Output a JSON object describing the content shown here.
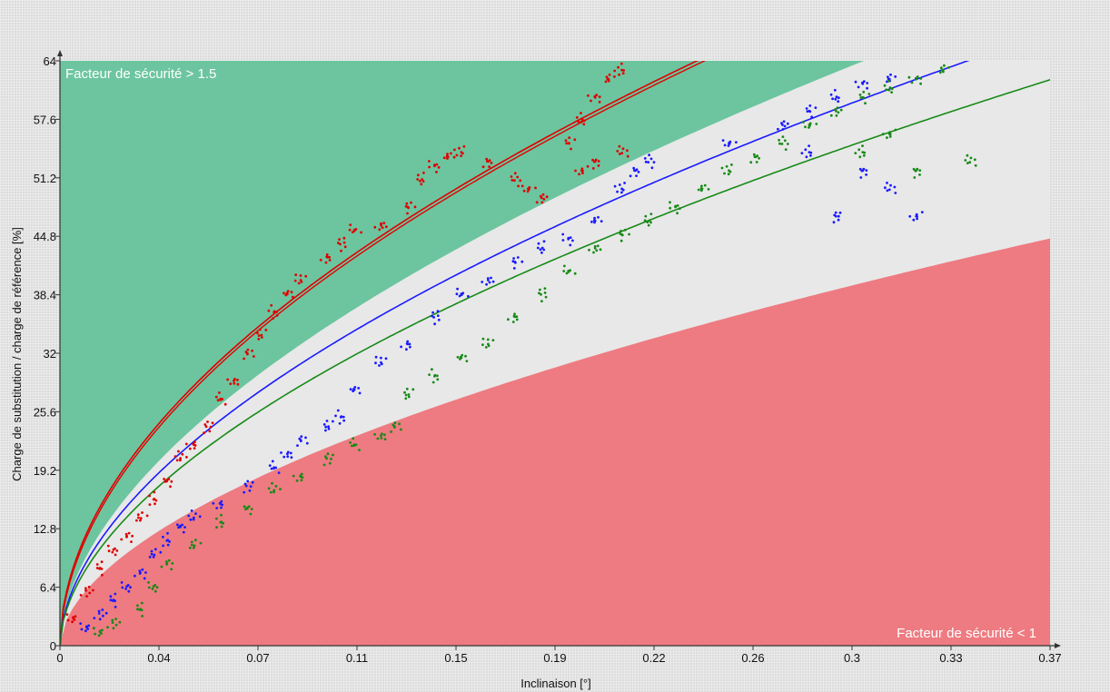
{
  "chart_data": {
    "type": "scatter",
    "title": "",
    "xlabel": "Inclinaison [°]",
    "ylabel": "Charge de substitution / charge de référence [%]",
    "xlim": [
      0,
      0.37
    ],
    "ylim": [
      0,
      64
    ],
    "x_ticks": [
      "0",
      "0.04",
      "0.07",
      "0.11",
      "0.15",
      "0.19",
      "0.22",
      "0.26",
      "0.3",
      "0.33",
      "0.37"
    ],
    "y_ticks": [
      "0",
      "6.4",
      "12.8",
      "19.2",
      "25.6",
      "32",
      "38.4",
      "44.8",
      "51.2",
      "57.6",
      "64"
    ],
    "grid": false,
    "zones": [
      {
        "name": "Facteur de sécurité > 1.5",
        "color": "#6cc59f",
        "boundary": {
          "coef": 124,
          "exp": 0.55
        }
      },
      {
        "name": "Facteur de sécurité < 1",
        "color": "#ee7b81",
        "boundary": {
          "coef": 77,
          "exp": 0.55
        }
      }
    ],
    "middle_zone_color": "#e8e8e8",
    "series": [
      {
        "color": "#e00000",
        "fit": {
          "coef": 135,
          "exp": 0.52
        },
        "fit_double": true,
        "points": [
          [
            0.005,
            3
          ],
          [
            0.01,
            6
          ],
          [
            0.015,
            8.5
          ],
          [
            0.02,
            10.5
          ],
          [
            0.025,
            12
          ],
          [
            0.03,
            14
          ],
          [
            0.035,
            16
          ],
          [
            0.04,
            18
          ],
          [
            0.045,
            20.5
          ],
          [
            0.05,
            22
          ],
          [
            0.055,
            24
          ],
          [
            0.06,
            27
          ],
          [
            0.065,
            29
          ],
          [
            0.07,
            32
          ],
          [
            0.075,
            34
          ],
          [
            0.08,
            36.5
          ],
          [
            0.085,
            38.5
          ],
          [
            0.09,
            40
          ],
          [
            0.1,
            42.5
          ],
          [
            0.105,
            44
          ],
          [
            0.11,
            45.5
          ],
          [
            0.12,
            46
          ],
          [
            0.13,
            48
          ],
          [
            0.135,
            51
          ],
          [
            0.14,
            52.5
          ],
          [
            0.145,
            53.5
          ],
          [
            0.15,
            54
          ],
          [
            0.16,
            53
          ],
          [
            0.17,
            51
          ],
          [
            0.175,
            50
          ],
          [
            0.18,
            49
          ],
          [
            0.19,
            55
          ],
          [
            0.195,
            57.5
          ],
          [
            0.2,
            60
          ],
          [
            0.205,
            62
          ],
          [
            0.21,
            63
          ],
          [
            0.2,
            53
          ],
          [
            0.21,
            54
          ],
          [
            0.195,
            52
          ]
        ]
      },
      {
        "color": "#1a1aff",
        "fit": {
          "coef": 116,
          "exp": 0.55
        },
        "fit_double": false,
        "points": [
          [
            0.01,
            2
          ],
          [
            0.015,
            3.5
          ],
          [
            0.02,
            5
          ],
          [
            0.025,
            6.5
          ],
          [
            0.03,
            8
          ],
          [
            0.035,
            10
          ],
          [
            0.04,
            11.5
          ],
          [
            0.045,
            13
          ],
          [
            0.05,
            14
          ],
          [
            0.06,
            15.5
          ],
          [
            0.07,
            17.5
          ],
          [
            0.08,
            19.5
          ],
          [
            0.085,
            21
          ],
          [
            0.09,
            22.5
          ],
          [
            0.1,
            24
          ],
          [
            0.105,
            25
          ],
          [
            0.11,
            28
          ],
          [
            0.12,
            31
          ],
          [
            0.13,
            33
          ],
          [
            0.14,
            36
          ],
          [
            0.15,
            38.5
          ],
          [
            0.16,
            40
          ],
          [
            0.17,
            42
          ],
          [
            0.18,
            43.5
          ],
          [
            0.19,
            44.5
          ],
          [
            0.2,
            46.5
          ],
          [
            0.21,
            50
          ],
          [
            0.215,
            52
          ],
          [
            0.22,
            53
          ],
          [
            0.25,
            55
          ],
          [
            0.27,
            57
          ],
          [
            0.28,
            58.5
          ],
          [
            0.29,
            60
          ],
          [
            0.3,
            61.5
          ],
          [
            0.31,
            62
          ],
          [
            0.28,
            54
          ],
          [
            0.3,
            52
          ],
          [
            0.31,
            50
          ],
          [
            0.32,
            47
          ],
          [
            0.29,
            47
          ]
        ]
      },
      {
        "color": "#178a17",
        "fit": {
          "coef": 107,
          "exp": 0.55
        },
        "fit_double": false,
        "points": [
          [
            0.015,
            1.5
          ],
          [
            0.02,
            2.5
          ],
          [
            0.03,
            4
          ],
          [
            0.035,
            6.5
          ],
          [
            0.04,
            9
          ],
          [
            0.05,
            11
          ],
          [
            0.06,
            13.5
          ],
          [
            0.07,
            15
          ],
          [
            0.08,
            17
          ],
          [
            0.09,
            18.5
          ],
          [
            0.1,
            20.5
          ],
          [
            0.11,
            22
          ],
          [
            0.12,
            23
          ],
          [
            0.125,
            24
          ],
          [
            0.13,
            27.5
          ],
          [
            0.14,
            29.5
          ],
          [
            0.15,
            31.5
          ],
          [
            0.16,
            33
          ],
          [
            0.17,
            36
          ],
          [
            0.18,
            38.5
          ],
          [
            0.19,
            41
          ],
          [
            0.2,
            43.5
          ],
          [
            0.21,
            45
          ],
          [
            0.22,
            46.5
          ],
          [
            0.23,
            48
          ],
          [
            0.24,
            50
          ],
          [
            0.25,
            52
          ],
          [
            0.26,
            53.5
          ],
          [
            0.27,
            55
          ],
          [
            0.28,
            57
          ],
          [
            0.29,
            58.5
          ],
          [
            0.3,
            60
          ],
          [
            0.31,
            61
          ],
          [
            0.32,
            62
          ],
          [
            0.33,
            63
          ],
          [
            0.3,
            54
          ],
          [
            0.32,
            52
          ],
          [
            0.34,
            53
          ],
          [
            0.31,
            56
          ]
        ]
      }
    ]
  }
}
